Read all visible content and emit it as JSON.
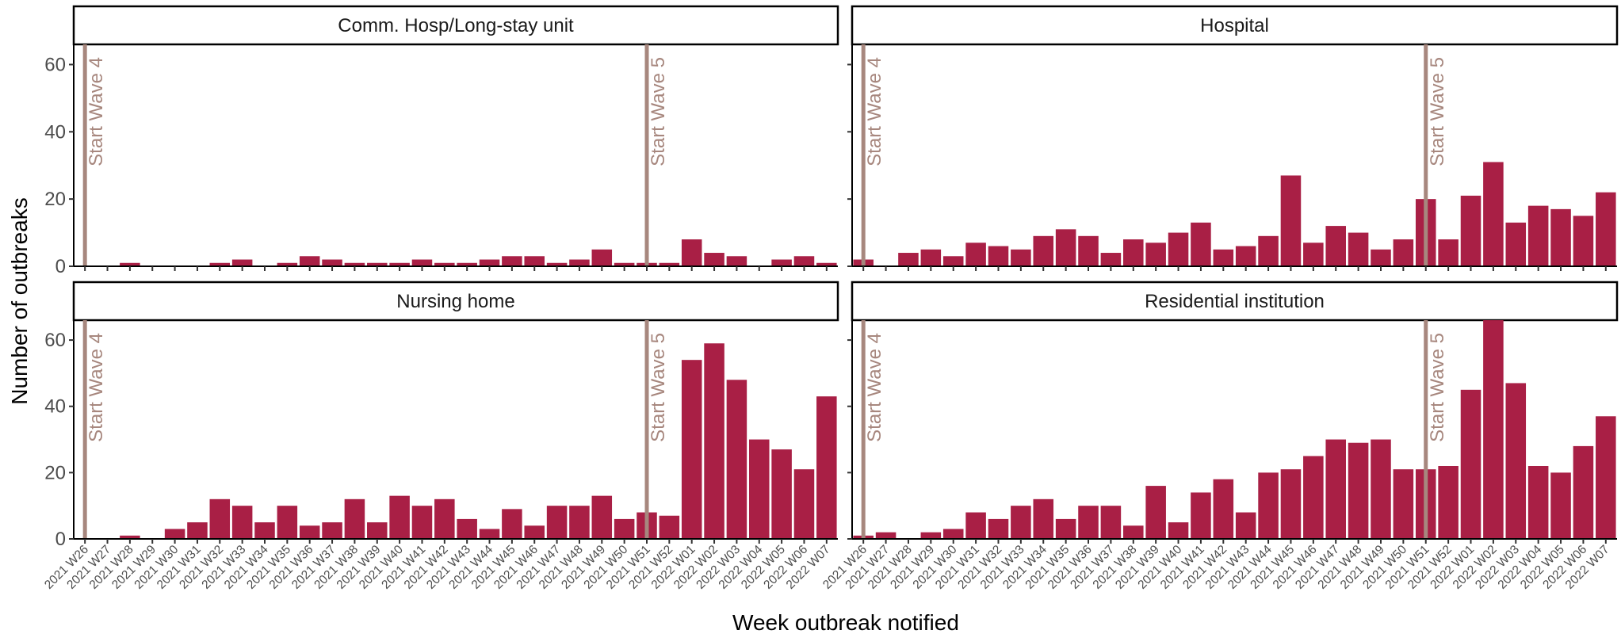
{
  "chart_data": {
    "type": "bar",
    "facet_layout": "2x2 grid",
    "xlabel": "Week outbreak notified",
    "ylabel": "Number of outbreaks",
    "ylim": [
      0,
      66
    ],
    "yticks": [
      0,
      20,
      40,
      60
    ],
    "grid": false,
    "colors": {
      "bar": "#a91f45",
      "wave_line": "#a7877e",
      "strip_border": "#000000",
      "axis": "#000000"
    },
    "categories": [
      "2021 W26",
      "2021 W27",
      "2021 W28",
      "2021 W29",
      "2021 W30",
      "2021 W31",
      "2021 W32",
      "2021 W33",
      "2021 W34",
      "2021 W35",
      "2021 W36",
      "2021 W37",
      "2021 W38",
      "2021 W39",
      "2021 W40",
      "2021 W41",
      "2021 W42",
      "2021 W43",
      "2021 W44",
      "2021 W45",
      "2021 W46",
      "2021 W47",
      "2021 W48",
      "2021 W49",
      "2021 W50",
      "2021 W51",
      "2021 W52",
      "2022 W01",
      "2022 W02",
      "2022 W03",
      "2022 W04",
      "2022 W05",
      "2022 W06",
      "2022 W07"
    ],
    "reference_lines": [
      {
        "label": "Start Wave 4",
        "at": "2021 W26"
      },
      {
        "label": "Start Wave 5",
        "at": "2021 W51"
      }
    ],
    "facets": [
      {
        "name": "Comm. Hosp/Long-stay unit",
        "values": [
          0,
          0,
          1,
          0,
          0,
          0,
          1,
          2,
          0,
          1,
          3,
          2,
          1,
          1,
          1,
          2,
          1,
          1,
          2,
          3,
          3,
          1,
          2,
          5,
          1,
          1,
          1,
          8,
          4,
          3,
          0,
          2,
          3,
          1
        ]
      },
      {
        "name": "Hospital",
        "values": [
          2,
          0,
          4,
          5,
          3,
          7,
          6,
          5,
          9,
          11,
          9,
          4,
          8,
          7,
          10,
          13,
          5,
          6,
          9,
          27,
          7,
          12,
          10,
          5,
          8,
          20,
          8,
          21,
          31,
          13,
          18,
          17,
          15,
          22
        ]
      },
      {
        "name": "Nursing home",
        "values": [
          0,
          0,
          1,
          0,
          3,
          5,
          12,
          10,
          5,
          10,
          4,
          5,
          12,
          5,
          13,
          10,
          12,
          6,
          3,
          9,
          4,
          10,
          10,
          13,
          6,
          8,
          7,
          54,
          59,
          48,
          30,
          27,
          21,
          43
        ]
      },
      {
        "name": "Residential institution",
        "values": [
          1,
          2,
          0,
          2,
          3,
          8,
          6,
          10,
          12,
          6,
          10,
          10,
          4,
          16,
          5,
          14,
          18,
          8,
          20,
          21,
          25,
          30,
          29,
          30,
          21,
          21,
          22,
          45,
          67,
          47,
          22,
          20,
          28,
          37
        ]
      }
    ]
  }
}
